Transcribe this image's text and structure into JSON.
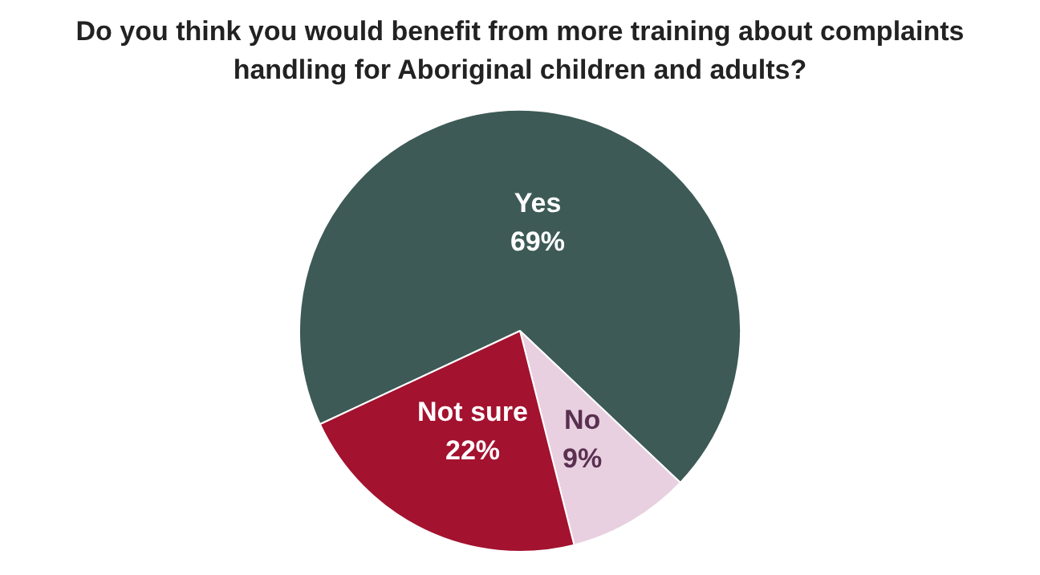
{
  "chart_data": {
    "type": "pie",
    "title": "Do you think you would benefit from more training about complaints handling for Aboriginal children and adults?",
    "categories": [
      "Yes",
      "No",
      "Not sure"
    ],
    "values": [
      69,
      9,
      22
    ],
    "value_labels": [
      "69%",
      "9%",
      "22%"
    ],
    "colors": [
      "#3d5a56",
      "#e8d0e0",
      "#a3122f"
    ],
    "legend": false
  }
}
